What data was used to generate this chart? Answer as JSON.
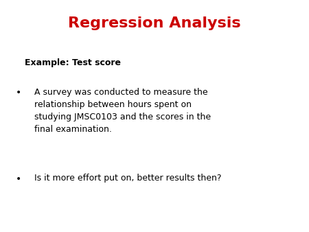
{
  "title": "Regression Analysis",
  "title_color": "#CC0000",
  "title_fontsize": 16,
  "subtitle": "Example: Test score",
  "subtitle_fontsize": 9,
  "subtitle_fontweight": "bold",
  "bullet1": "A survey was conducted to measure the\nrelationship between hours spent on\nstudying JMSC0103 and the scores in the\nfinal examination.",
  "bullet2": "Is it more effort put on, better results then?",
  "body_fontsize": 9,
  "body_color": "#000000",
  "background_color": "#ffffff",
  "bullet_symbol": "•"
}
